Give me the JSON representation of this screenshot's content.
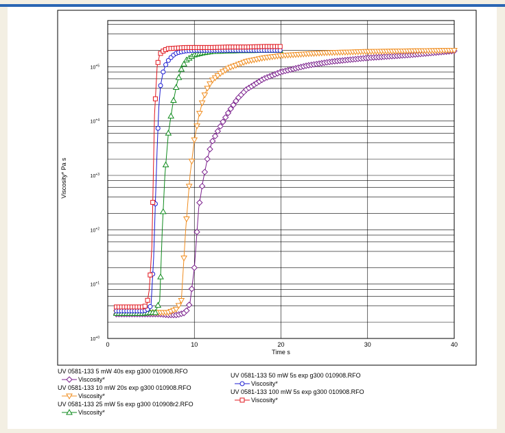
{
  "chart_data": {
    "type": "scatter",
    "ylog": true,
    "xlabel": "Time s",
    "ylabel": "Viscosity* Pa s",
    "xlim": [
      0,
      40
    ],
    "ylim": [
      1,
      1000000
    ],
    "xticks": [
      0,
      10,
      20,
      30,
      40
    ],
    "yticks": [
      {
        "value": 1,
        "label": "10+0"
      },
      {
        "value": 10,
        "label": "10+1"
      },
      {
        "value": 100,
        "label": "10+2"
      },
      {
        "value": 1000,
        "label": "10+3"
      },
      {
        "value": 10000,
        "label": "10+4"
      },
      {
        "value": 100000,
        "label": "10+5"
      }
    ],
    "grid": true,
    "series": [
      {
        "file": "UV 0581-133 5 mW 40s exp g300 010908.RFO",
        "name": "Viscosity*",
        "color": "#7a1f8c",
        "marker": "diamond",
        "x": [
          1,
          2,
          3,
          4,
          5,
          6,
          7,
          8,
          9,
          9.5,
          10,
          10.5,
          11,
          11.5,
          12,
          13,
          14,
          15,
          16,
          18,
          20,
          23,
          26,
          30,
          35,
          40
        ],
        "y": [
          2.8,
          2.8,
          2.8,
          2.8,
          2.8,
          2.8,
          2.7,
          2.7,
          3,
          4.5,
          20,
          250,
          800,
          2000,
          4000,
          8000,
          15000,
          26000,
          38000,
          60000,
          80000,
          105000,
          125000,
          145000,
          165000,
          195000
        ]
      },
      {
        "file": "UV 0581-133 10 mW 20s exp g300 010908.RFO",
        "name": "Viscosity*",
        "color": "#f08c1e",
        "marker": "triangle-down",
        "x": [
          1,
          2,
          3,
          4,
          5,
          6,
          7,
          8,
          8.5,
          9,
          9.5,
          10,
          10.5,
          11,
          11.5,
          12,
          13,
          14,
          16,
          18,
          20,
          25,
          30,
          35,
          40
        ],
        "y": [
          3,
          3,
          3,
          3,
          3,
          3,
          3,
          3.5,
          5,
          100,
          1000,
          4500,
          12000,
          25000,
          40000,
          55000,
          75000,
          95000,
          125000,
          145000,
          160000,
          180000,
          190000,
          195000,
          200000
        ]
      },
      {
        "file": "UV 0581-133 25 mW 5s exp g300 010908r2.RFO",
        "name": "Viscosity*",
        "color": "#0e8a1c",
        "marker": "triangle-up",
        "x": [
          1,
          2,
          3,
          4,
          5,
          5.5,
          6,
          6.3,
          6.6,
          7,
          7.5,
          8,
          8.5,
          9,
          10,
          11,
          12,
          14,
          16,
          18,
          20
        ],
        "y": [
          2.9,
          2.9,
          2.9,
          2.9,
          3,
          3,
          5,
          100,
          1000,
          6000,
          20000,
          50000,
          90000,
          130000,
          165000,
          180000,
          190000,
          195000,
          198000,
          200000,
          200000
        ]
      },
      {
        "file": "UV 0581-133 50 mW 5s exp g300 010908.RFO",
        "name": "Viscosity*",
        "color": "#1a1ad0",
        "marker": "circle",
        "x": [
          1,
          2,
          3,
          4,
          4.5,
          5,
          5.3,
          5.5,
          5.7,
          5.9,
          6.1,
          6.4,
          6.8,
          7.5,
          8,
          9,
          10,
          12,
          14,
          16,
          18,
          20
        ],
        "y": [
          3.2,
          3.2,
          3.2,
          3.2,
          3.3,
          4,
          30,
          300,
          3000,
          18000,
          45000,
          80000,
          120000,
          160000,
          180000,
          195000,
          200000,
          200000,
          200000,
          200000,
          200000,
          200000
        ]
      },
      {
        "file": "UV 0581-133 100 mW 5s exp g300 010908.RFO",
        "name": "Viscosity*",
        "color": "#e0141c",
        "marker": "square",
        "x": [
          1,
          2,
          3,
          4,
          4.5,
          4.8,
          5.1,
          5.4,
          5.7,
          6,
          6.5,
          7,
          8,
          9,
          10,
          12,
          14,
          16,
          18,
          20
        ],
        "y": [
          3.8,
          3.8,
          3.8,
          3.8,
          4,
          8,
          50,
          13000,
          100000,
          170000,
          200000,
          215000,
          220000,
          225000,
          225000,
          225000,
          230000,
          230000,
          235000,
          235000
        ]
      }
    ]
  }
}
